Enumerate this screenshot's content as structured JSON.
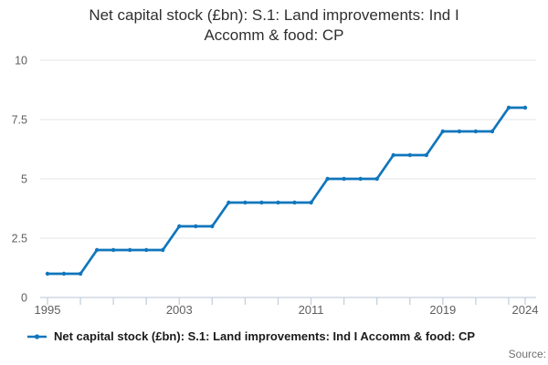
{
  "header": {
    "title_lines": [
      "Net capital stock (£bn): S.1: Land improvements: Ind I",
      "Accomm & food: CP"
    ]
  },
  "legend": {
    "label": "Net capital stock (£bn): S.1: Land improvements: Ind I Accomm & food: CP"
  },
  "footer": {
    "source_label": "Source:"
  },
  "colors": {
    "line": "#1076bc",
    "grid": "#e4e4e4",
    "axis": "#c6d0dd",
    "tick_label": "#5f5f5f",
    "title": "#2f2f2f",
    "legend_text": "#1a1a1a",
    "source_text": "#6f6f6f"
  },
  "chart_data": {
    "type": "line",
    "title": "Net capital stock (£bn): S.1: Land improvements: Ind I Accomm & food: CP",
    "xlabel": "",
    "ylabel": "",
    "xlim": [
      1995,
      2024
    ],
    "ylim": [
      0,
      10
    ],
    "grid": "horizontal",
    "legend_position": "bottom-left",
    "marker": "circle",
    "x": [
      1995,
      1996,
      1997,
      1998,
      1999,
      2000,
      2001,
      2002,
      2003,
      2004,
      2005,
      2006,
      2007,
      2008,
      2009,
      2010,
      2011,
      2012,
      2013,
      2014,
      2015,
      2016,
      2017,
      2018,
      2019,
      2020,
      2021,
      2022,
      2023,
      2024
    ],
    "series": [
      {
        "name": "Net capital stock (£bn): S.1: Land improvements: Ind I Accomm & food: CP",
        "values": [
          1,
          1,
          1,
          2,
          2,
          2,
          2,
          2,
          3,
          3,
          3,
          4,
          4,
          4,
          4,
          4,
          4,
          5,
          5,
          5,
          5,
          6,
          6,
          6,
          7,
          7,
          7,
          7,
          8,
          8
        ]
      }
    ],
    "y_ticks": [
      0,
      2.5,
      5,
      7.5,
      10
    ],
    "y_tick_labels": [
      "0",
      "2.5",
      "5",
      "7.5",
      "10"
    ],
    "x_tick_marks": [
      1995,
      1997,
      1999,
      2001,
      2003,
      2005,
      2007,
      2009,
      2011,
      2013,
      2015,
      2017,
      2019,
      2021,
      2023,
      2024
    ],
    "x_tick_labels": [
      {
        "x": 1995,
        "label": "1995"
      },
      {
        "x": 2003,
        "label": "2003"
      },
      {
        "x": 2011,
        "label": "2011"
      },
      {
        "x": 2019,
        "label": "2019"
      },
      {
        "x": 2024,
        "label": "2024"
      }
    ]
  }
}
